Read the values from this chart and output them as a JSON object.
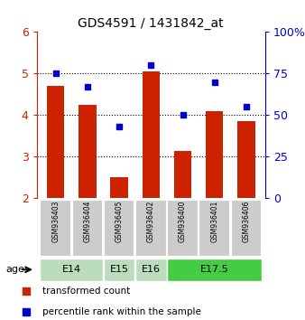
{
  "title": "GDS4591 / 1431842_at",
  "samples": [
    "GSM936403",
    "GSM936404",
    "GSM936405",
    "GSM936402",
    "GSM936400",
    "GSM936401",
    "GSM936406"
  ],
  "red_values": [
    4.7,
    4.25,
    2.5,
    5.05,
    3.15,
    4.1,
    3.85
  ],
  "blue_values": [
    75,
    67,
    43,
    80,
    50,
    70,
    55
  ],
  "y_min": 2,
  "y_max": 6,
  "y_ticks": [
    2,
    3,
    4,
    5,
    6
  ],
  "y2_ticks": [
    0,
    25,
    50,
    75,
    100
  ],
  "bar_color": "#cc2200",
  "dot_color": "#0000cc",
  "sample_box_color": "#cccccc",
  "red_legend": "transformed count",
  "blue_legend": "percentile rank within the sample",
  "group_defs": [
    {
      "label": "E14",
      "idxs": [
        0,
        1
      ],
      "color": "#bbddbb"
    },
    {
      "label": "E15",
      "idxs": [
        2
      ],
      "color": "#bbddbb"
    },
    {
      "label": "E16",
      "idxs": [
        3
      ],
      "color": "#bbddbb"
    },
    {
      "label": "E17.5",
      "idxs": [
        4,
        5,
        6
      ],
      "color": "#44cc44"
    }
  ]
}
